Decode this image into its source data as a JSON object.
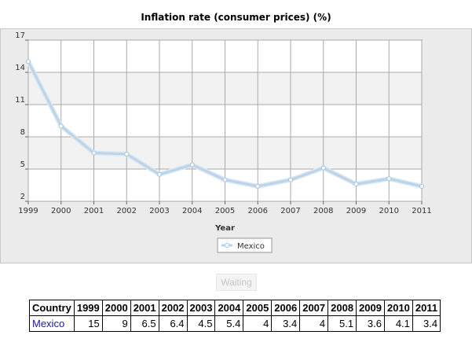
{
  "chart_data": {
    "type": "line",
    "title": "Inflation rate (consumer prices) (%)",
    "xlabel": "Year",
    "ylabel": "",
    "x": [
      "1999",
      "2000",
      "2001",
      "2002",
      "2003",
      "2004",
      "2005",
      "2006",
      "2007",
      "2008",
      "2009",
      "2010",
      "2011"
    ],
    "series": [
      {
        "name": "Mexico",
        "values": [
          15,
          9,
          6.5,
          6.4,
          4.5,
          5.4,
          4,
          3.4,
          4,
          5.1,
          3.6,
          4.1,
          3.4
        ]
      }
    ],
    "ylim": [
      2,
      17
    ],
    "yticks": [
      2,
      5,
      8,
      11,
      14,
      17
    ],
    "grid": true,
    "legend_position": "bottom-center",
    "colors": {
      "line": "#bcd4ea",
      "marker_fill": "#ffffff",
      "marker_stroke": "#9fc3e3"
    }
  },
  "controls": {
    "waiting_label": "Waiting"
  },
  "table": {
    "header": [
      "Country",
      "1999",
      "2000",
      "2001",
      "2002",
      "2003",
      "2004",
      "2005",
      "2006",
      "2007",
      "2008",
      "2009",
      "2010",
      "2011"
    ],
    "rows": [
      [
        "Mexico",
        "15",
        "9",
        "6.5",
        "6.4",
        "4.5",
        "5.4",
        "4",
        "3.4",
        "4",
        "5.1",
        "3.6",
        "4.1",
        "3.4"
      ]
    ]
  }
}
